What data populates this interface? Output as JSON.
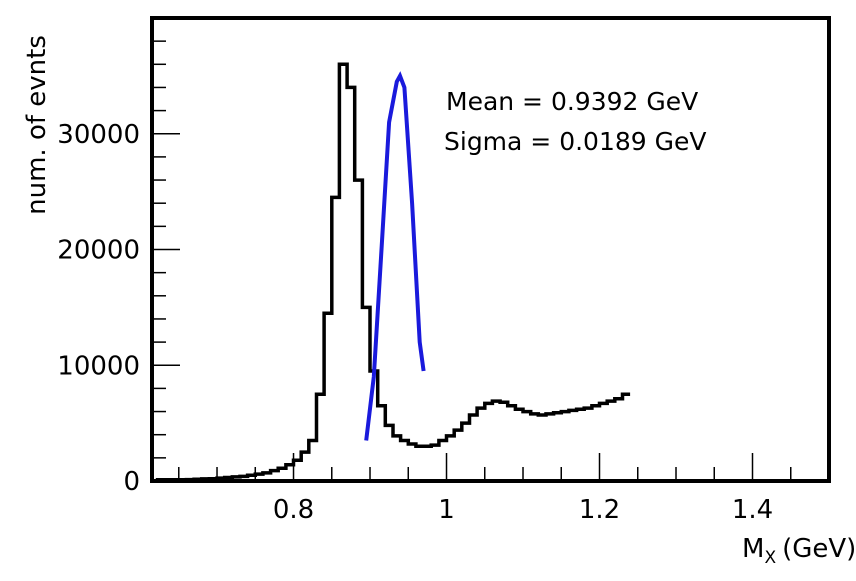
{
  "chart_data": {
    "type": "histogram",
    "xlabel": "M",
    "xlabel_sub": "X",
    "xlabel_unit": "(GeV)",
    "ylabel": "num. of evnts",
    "xlim": [
      0.615,
      1.5
    ],
    "ylim": [
      0,
      40000
    ],
    "x_ticks": [
      {
        "value": 0.8,
        "label": "0.8"
      },
      {
        "value": 1.0,
        "label": "1"
      },
      {
        "value": 1.2,
        "label": "1.2"
      },
      {
        "value": 1.4,
        "label": "1.4"
      }
    ],
    "y_ticks": [
      {
        "value": 0,
        "label": "0"
      },
      {
        "value": 10000,
        "label": "10000"
      },
      {
        "value": 20000,
        "label": "20000"
      },
      {
        "value": 30000,
        "label": "30000"
      }
    ],
    "annotations": {
      "mean": "Mean = 0.9392 GeV",
      "sigma": "Sigma = 0.0189 GeV"
    },
    "histogram": {
      "bin_width": 0.01,
      "bin_start": 0.62,
      "values": [
        100,
        100,
        100,
        100,
        120,
        150,
        180,
        200,
        250,
        300,
        350,
        400,
        500,
        600,
        700,
        900,
        1100,
        1400,
        1800,
        2500,
        3500,
        7500,
        14500,
        24500,
        36000,
        34000,
        26000,
        15000,
        9500,
        6500,
        4800,
        3900,
        3500,
        3200,
        3000,
        3000,
        3100,
        3500,
        3900,
        4400,
        5000,
        5700,
        6300,
        6700,
        6900,
        6800,
        6500,
        6200,
        6000,
        5800,
        5700,
        5800,
        5900,
        6000,
        6100,
        6200,
        6300,
        6500,
        6700,
        6900,
        7100,
        7500
      ]
    },
    "fit": {
      "x": [
        0.895,
        0.905,
        0.915,
        0.925,
        0.935,
        0.9392,
        0.945,
        0.955,
        0.965,
        0.97
      ],
      "y": [
        3500,
        9000,
        20000,
        31000,
        34500,
        35000,
        34000,
        24000,
        12000,
        9500
      ]
    },
    "colors": {
      "histogram": "#000000",
      "fit": "#1a1adc",
      "frame": "#000000"
    }
  }
}
